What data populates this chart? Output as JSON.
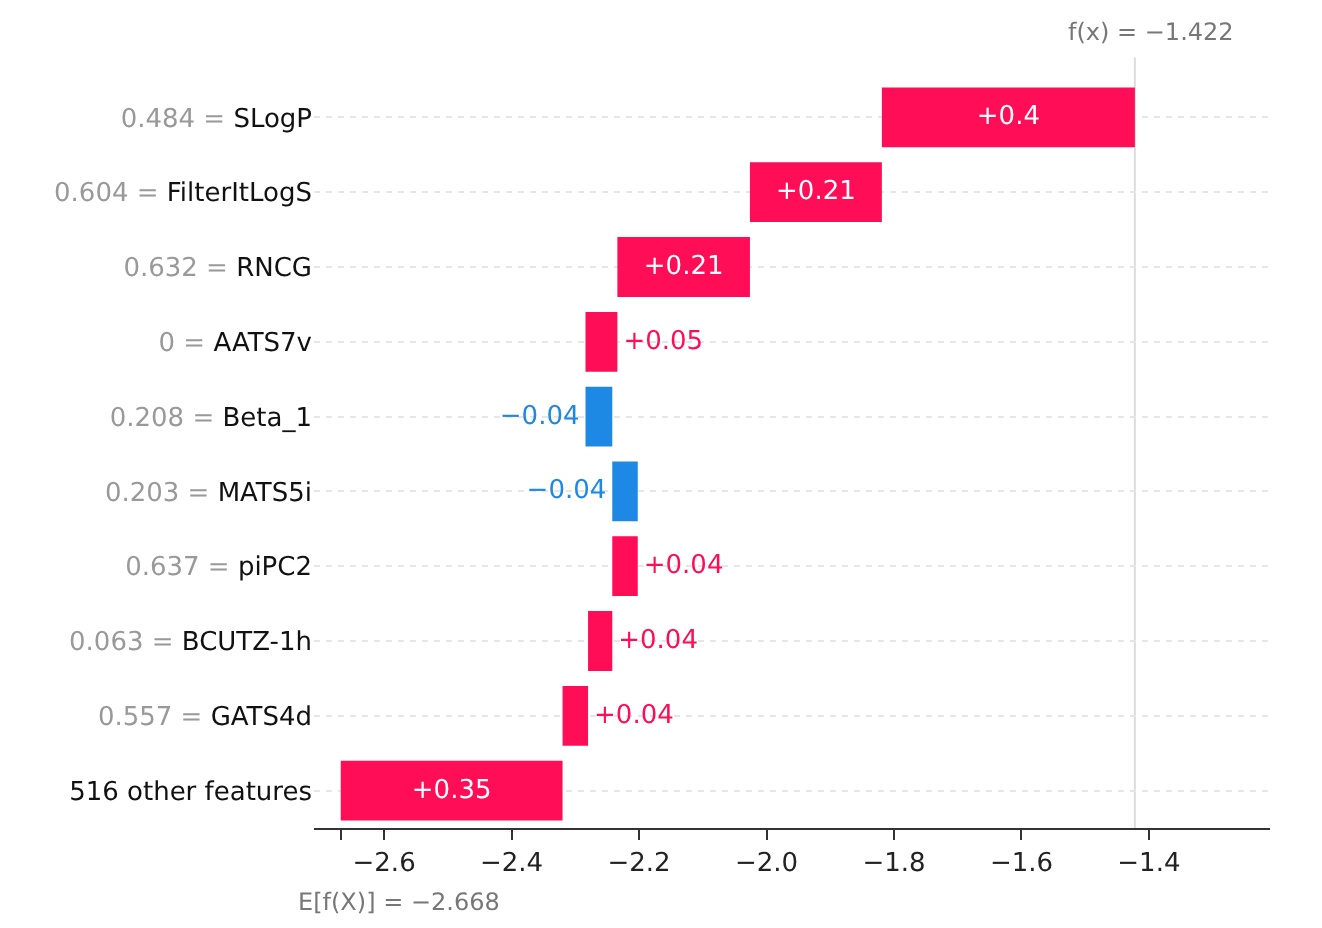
{
  "chart_data": {
    "type": "bar",
    "orientation": "horizontal",
    "categories": [
      "0.484 = SLogP",
      "0.604 = FilterItLogS",
      "0.632 = RNCG",
      "0 = AATS7v",
      "0.208 = Beta_1",
      "0.203 = MATS5i",
      "0.637 = piPC2",
      "0.063 = BCUTZ-1h",
      "0.557 = GATS4d",
      "516 other features"
    ],
    "values": [
      0.397,
      0.207,
      0.208,
      0.05,
      -0.042,
      -0.04,
      0.04,
      0.038,
      0.04,
      0.348
    ],
    "base": [
      -1.819,
      -2.026,
      -2.234,
      -2.284,
      -2.242,
      -2.202,
      -2.242,
      -2.28,
      -2.32,
      -2.668
    ],
    "colors": [
      "#ff0d57",
      "#ff0d57",
      "#ff0d57",
      "#ff0d57",
      "#1e88e5",
      "#1e88e5",
      "#ff0d57",
      "#ff0d57",
      "#ff0d57",
      "#ff0d57"
    ],
    "value_labels": [
      "+0.4",
      "+0.21",
      "+0.21",
      "+0.05",
      "−0.04",
      "−0.04",
      "+0.04",
      "+0.04",
      "+0.04",
      "+0.35"
    ],
    "xlim": [
      -2.71,
      -1.21
    ],
    "xticks": [
      {
        "value": -2.668,
        "label": null
      },
      {
        "value": -2.6,
        "label": "−2.6"
      },
      {
        "value": -2.4,
        "label": "−2.4"
      },
      {
        "value": -2.2,
        "label": "−2.2"
      },
      {
        "value": -2.0,
        "label": "−2.0"
      },
      {
        "value": -1.8,
        "label": "−1.8"
      },
      {
        "value": -1.6,
        "label": "−1.6"
      },
      {
        "value": -1.4,
        "label": "−1.4"
      }
    ],
    "ref_lines": [
      {
        "axis": "x",
        "value": -1.422,
        "label": "f(x) = −1.422",
        "color": "#dddddd"
      }
    ],
    "annotations": [
      "E[f(X)] = −2.668"
    ],
    "grid": "y"
  }
}
